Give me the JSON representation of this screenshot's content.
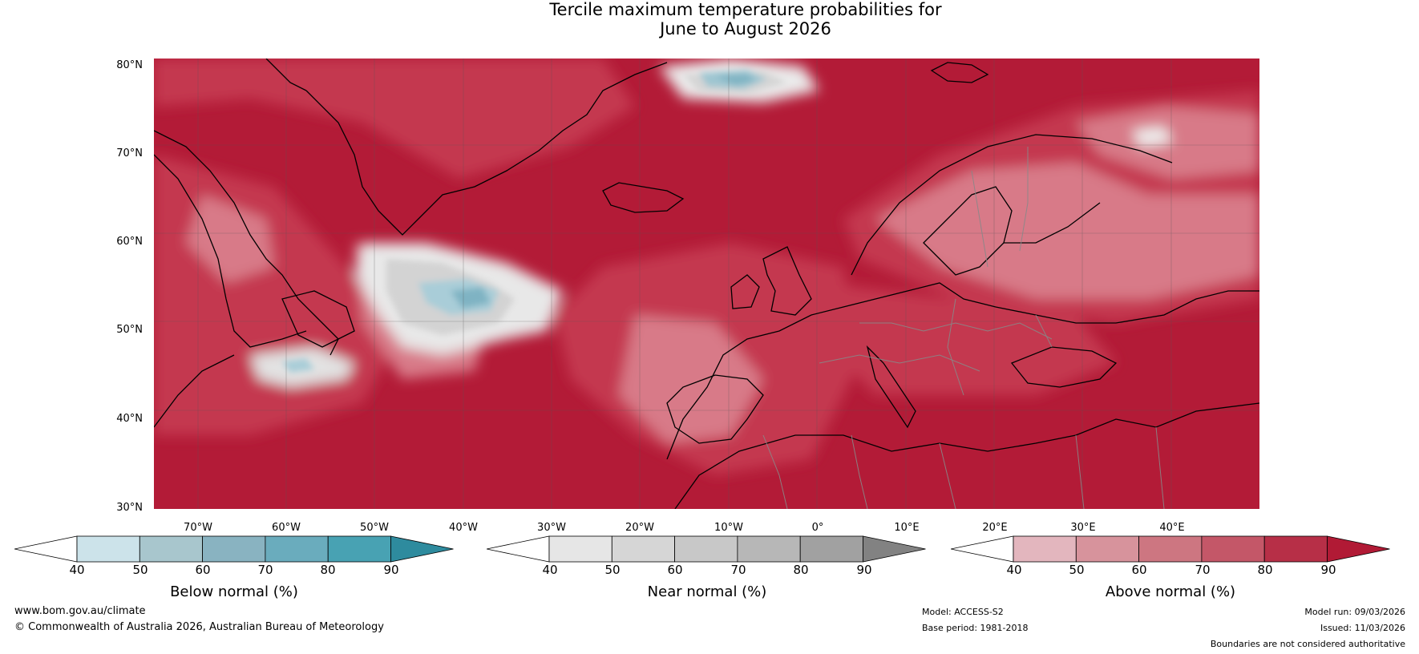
{
  "title": {
    "line1": "Tercile maximum temperature probabilities for",
    "line2": "June to August 2026"
  },
  "map": {
    "lat_labels": [
      "80°N",
      "70°N",
      "60°N",
      "50°N",
      "40°N",
      "30°N"
    ],
    "lon_labels": [
      "70°W",
      "60°W",
      "50°W",
      "40°W",
      "30°W",
      "20°W",
      "10°W",
      "0°",
      "10°E",
      "20°E",
      "30°E",
      "40°E"
    ],
    "colors": {
      "above_dark": "#b31b37",
      "above_mid": "#c4384f",
      "above_light": "#d87a88",
      "near": "#d4d4d4",
      "below": "#7fb3c3"
    }
  },
  "colorbars": [
    {
      "label": "Below normal (%)",
      "ticks": [
        "40",
        "50",
        "60",
        "70",
        "80",
        "90"
      ],
      "colors": [
        "#ffffff",
        "#cce3ea",
        "#a8c6cd",
        "#89b3c1",
        "#6aacbd",
        "#48a2b3",
        "#2e8b9e"
      ]
    },
    {
      "label": "Near normal (%)",
      "ticks": [
        "40",
        "50",
        "60",
        "70",
        "80",
        "90"
      ],
      "colors": [
        "#ffffff",
        "#e6e6e6",
        "#d6d6d6",
        "#c8c8c8",
        "#b7b7b7",
        "#a1a1a1",
        "#828282"
      ]
    },
    {
      "label": "Above normal (%)",
      "ticks": [
        "40",
        "50",
        "60",
        "70",
        "80",
        "90"
      ],
      "colors": [
        "#ffffff",
        "#e3b6be",
        "#d7939c",
        "#cd7681",
        "#c45768",
        "#b72f47",
        "#b11a35"
      ]
    }
  ],
  "footer": {
    "url": "www.bom.gov.au/climate",
    "copyright": "© Commonwealth of Australia 2026, Australian Bureau of Meteorology",
    "model": "Model: ACCESS-S2",
    "base_period": "Base period: 1981-2018",
    "model_run": "Model run: 09/03/2026",
    "issued": "Issued: 11/03/2026",
    "disclaimer": "Boundaries are not considered authoritative"
  }
}
